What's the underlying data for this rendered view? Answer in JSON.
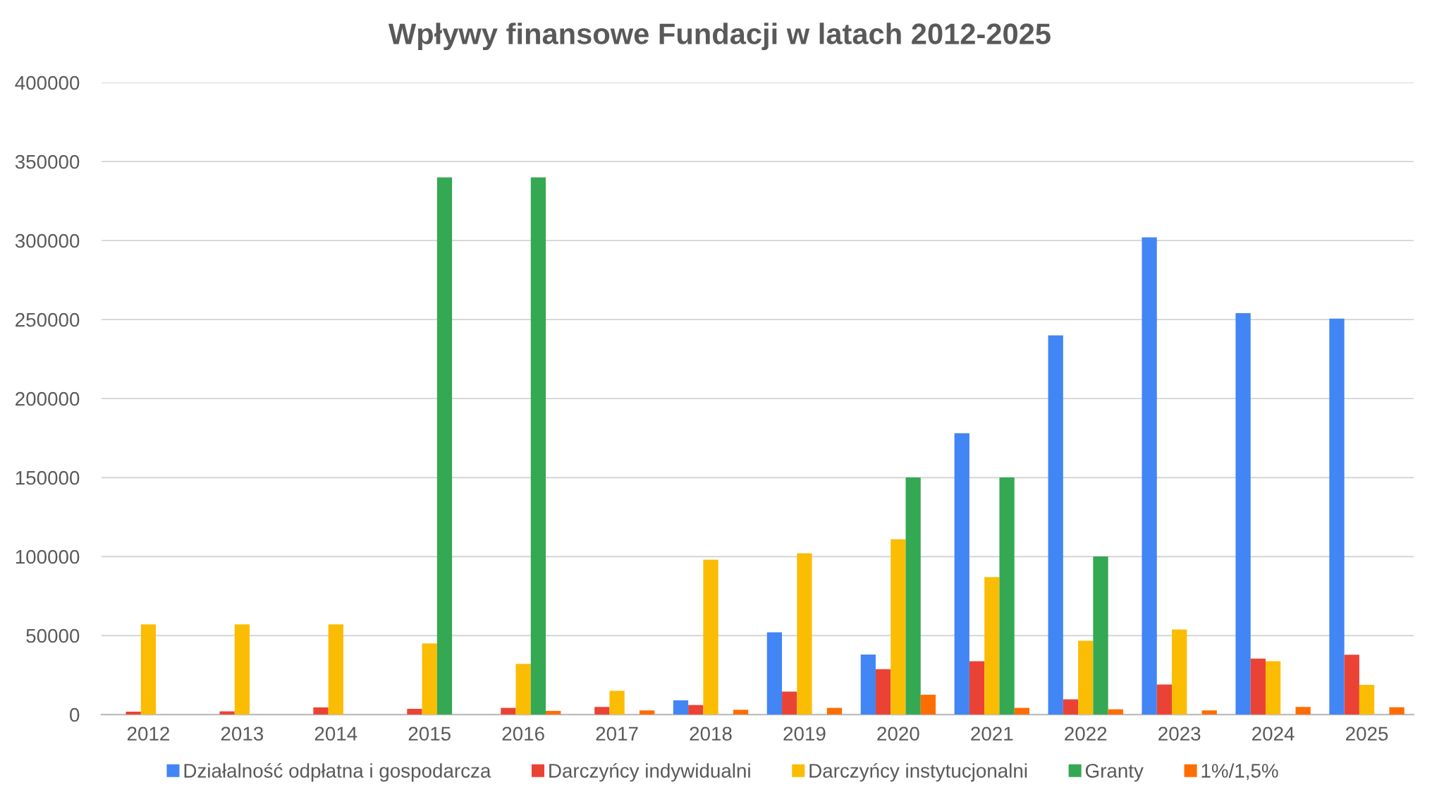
{
  "chart_data": {
    "type": "bar",
    "title": "Wpływy finansowe Fundacji w latach 2012-2025",
    "categories": [
      "2012",
      "2013",
      "2014",
      "2015",
      "2016",
      "2017",
      "2018",
      "2019",
      "2020",
      "2021",
      "2022",
      "2023",
      "2024",
      "2025"
    ],
    "series": [
      {
        "name": "Działalność odpłatna i gospodarcza",
        "color": "#4285f4",
        "values": [
          null,
          null,
          null,
          null,
          null,
          null,
          9000,
          52000,
          38000,
          178000,
          240000,
          302000,
          254000,
          250600
        ]
      },
      {
        "name": "Darczyńcy indywidualni",
        "color": "#ea4335",
        "values": [
          1800,
          2000,
          4500,
          3600,
          4200,
          4800,
          6000,
          14500,
          28700,
          33700,
          9600,
          19000,
          35400,
          37800
        ]
      },
      {
        "name": "Darczyńcy instytucjonalni",
        "color": "#fbbc04",
        "values": [
          57000,
          57000,
          57000,
          45000,
          32000,
          15000,
          98000,
          102000,
          111000,
          87000,
          46700,
          53800,
          33700,
          18800
        ]
      },
      {
        "name": "Granty",
        "color": "#34a853",
        "values": [
          null,
          null,
          null,
          340000,
          340000,
          null,
          null,
          null,
          150000,
          150000,
          100000,
          null,
          null,
          null
        ]
      },
      {
        "name": "1%/1,5%",
        "color": "#ff6d01",
        "values": [
          null,
          null,
          null,
          null,
          2300,
          2600,
          3000,
          4200,
          12500,
          4200,
          3300,
          2600,
          4800,
          4600
        ]
      }
    ],
    "ylim": [
      0,
      400000
    ],
    "yticks": [
      0,
      50000,
      100000,
      150000,
      200000,
      250000,
      300000,
      350000,
      400000
    ],
    "grid": "y",
    "legend": "bottom"
  }
}
